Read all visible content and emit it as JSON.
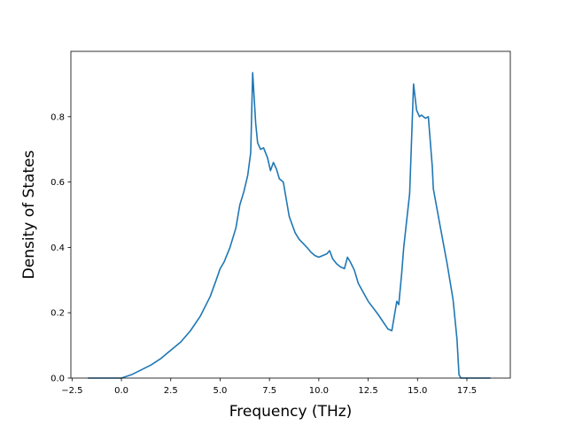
{
  "chart_data": {
    "type": "line",
    "xlabel": "Frequency (THz)",
    "ylabel": "Density of States",
    "xlim": [
      -2.56,
      19.7
    ],
    "ylim": [
      0.0,
      1.0
    ],
    "x_ticks": [
      -2.5,
      0.0,
      2.5,
      5.0,
      7.5,
      10.0,
      12.5,
      15.0,
      17.5
    ],
    "x_tick_labels": [
      "−2.5",
      "0.0",
      "2.5",
      "5.0",
      "7.5",
      "10.0",
      "12.5",
      "15.0",
      "17.5"
    ],
    "y_ticks": [
      0.0,
      0.2,
      0.4,
      0.6,
      0.8
    ],
    "y_tick_labels": [
      "0.0",
      "0.2",
      "0.4",
      "0.6",
      "0.8"
    ],
    "grid": false,
    "line_color": "#1f77b4",
    "series": [
      {
        "x": [
          -1.7,
          -1.0,
          0.0,
          0.5,
          1.0,
          1.5,
          2.0,
          2.5,
          3.0,
          3.5,
          4.0,
          4.5,
          4.8,
          5.0,
          5.2,
          5.5,
          5.8,
          6.0,
          6.2,
          6.4,
          6.55,
          6.65,
          6.8,
          6.9,
          7.05,
          7.2,
          7.4,
          7.55,
          7.7,
          7.85,
          8.0,
          8.2,
          8.5,
          8.8,
          9.0,
          9.4,
          9.6,
          9.8,
          10.0,
          10.2,
          10.4,
          10.55,
          10.7,
          10.9,
          11.1,
          11.3,
          11.45,
          11.6,
          11.8,
          12.0,
          12.5,
          13.0,
          13.5,
          13.7,
          13.95,
          14.05,
          14.2,
          14.3,
          14.6,
          14.8,
          14.95,
          15.1,
          15.2,
          15.4,
          15.55,
          15.75,
          15.8,
          16.1,
          16.5,
          16.8,
          17.0,
          17.1,
          17.2,
          18.7
        ],
        "y": [
          0.0,
          0.0,
          0.0,
          0.01,
          0.025,
          0.04,
          0.06,
          0.085,
          0.11,
          0.145,
          0.19,
          0.25,
          0.3,
          0.335,
          0.355,
          0.4,
          0.46,
          0.53,
          0.57,
          0.62,
          0.69,
          0.935,
          0.78,
          0.72,
          0.7,
          0.705,
          0.675,
          0.635,
          0.66,
          0.64,
          0.61,
          0.6,
          0.495,
          0.445,
          0.425,
          0.4,
          0.385,
          0.375,
          0.37,
          0.375,
          0.38,
          0.39,
          0.365,
          0.35,
          0.34,
          0.335,
          0.37,
          0.355,
          0.33,
          0.29,
          0.235,
          0.195,
          0.15,
          0.145,
          0.235,
          0.225,
          0.32,
          0.4,
          0.565,
          0.9,
          0.82,
          0.8,
          0.805,
          0.795,
          0.8,
          0.645,
          0.58,
          0.48,
          0.35,
          0.24,
          0.12,
          0.01,
          0.0,
          0.0
        ]
      }
    ]
  }
}
